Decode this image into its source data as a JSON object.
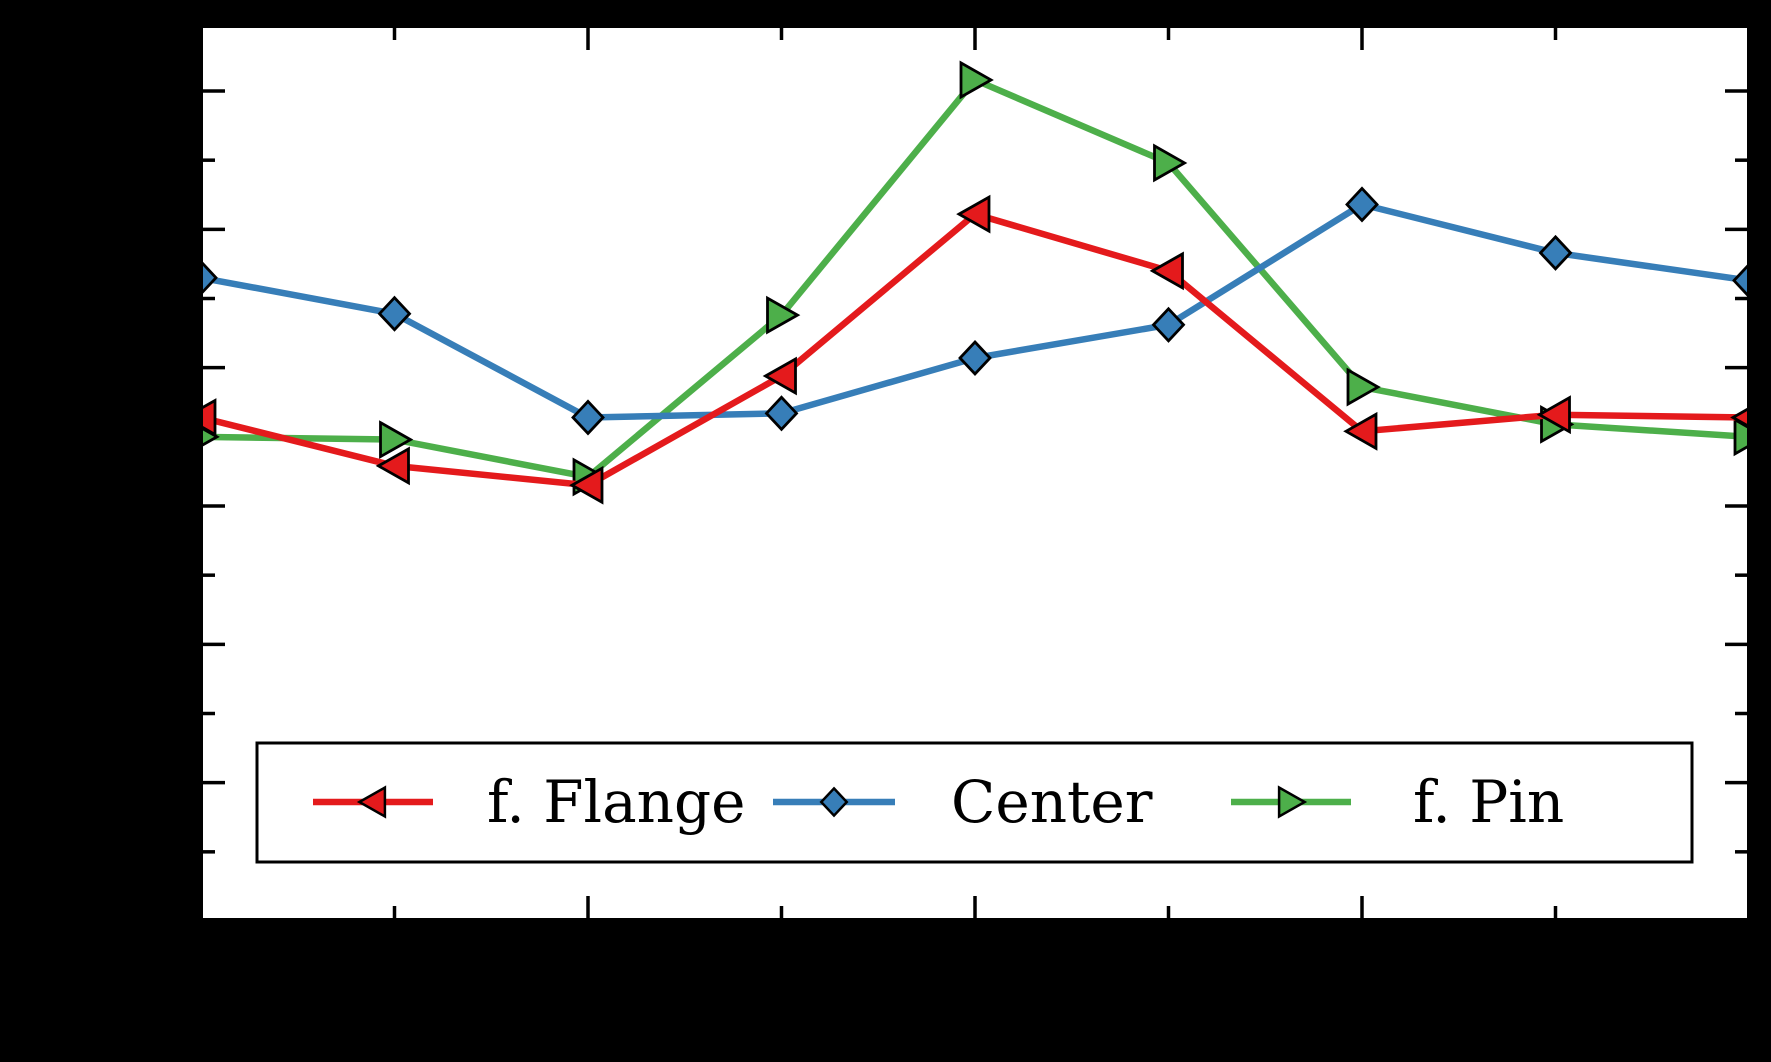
{
  "figure": {
    "background_color": "#000000",
    "plot_background_color": "#ffffff",
    "spine_color": "#000000"
  },
  "legend": {
    "entries": [
      {
        "label": "f. Flange",
        "color": "#e41a1c",
        "marker": "triangle-left"
      },
      {
        "label": "Center",
        "color": "#377eb8",
        "marker": "diamond"
      },
      {
        "label": "f. Pin",
        "color": "#4daf4a",
        "marker": "triangle-right"
      }
    ]
  },
  "chart_data": {
    "type": "line",
    "title": "",
    "xlabel": "",
    "ylabel": "",
    "tick_labels_visible": false,
    "tick_direction": "in",
    "grid": false,
    "legend_position": "lower center inside axes",
    "x": [
      0,
      0.5,
      1,
      1.5,
      2,
      2.5,
      3,
      3.5,
      4
    ],
    "xlim": [
      0,
      4
    ],
    "ylim": [
      0,
      6.47
    ],
    "x_major_ticks": [
      1,
      2,
      3
    ],
    "x_minor_ticks": [
      0.5,
      1.5,
      2.5,
      3.5
    ],
    "y_major_ticks": [
      1,
      2,
      3,
      4,
      5,
      6
    ],
    "y_minor_ticks": [
      0.5,
      1.5,
      2.5,
      3.5,
      4.5,
      5.5
    ],
    "y_unit_note": "values in major-tick divisions; tick labels not visible in image",
    "series": [
      {
        "name": "f. Flange",
        "marker": "triangle-left",
        "color": "#e41a1c",
        "values": [
          3.64,
          3.29,
          3.15,
          3.94,
          5.11,
          4.7,
          3.54,
          3.66,
          3.64
        ]
      },
      {
        "name": "Center",
        "marker": "diamond",
        "color": "#377eb8",
        "values": [
          4.65,
          4.39,
          3.64,
          3.67,
          4.07,
          4.31,
          5.18,
          4.83,
          4.63
        ]
      },
      {
        "name": "f. Pin",
        "marker": "triangle-right",
        "color": "#4daf4a",
        "values": [
          3.5,
          3.48,
          3.21,
          4.38,
          6.08,
          5.48,
          3.86,
          3.59,
          3.5
        ]
      }
    ],
    "draw_order_bottom_to_top": [
      "f. Pin",
      "Center",
      "f. Flange"
    ]
  }
}
